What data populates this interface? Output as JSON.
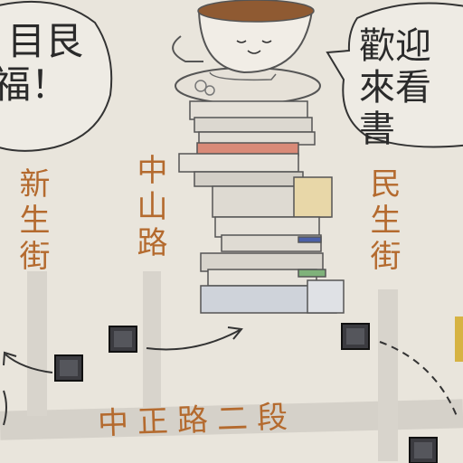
{
  "streets": {
    "xinsheng": "新生街",
    "zhongshan": "中山路",
    "minsheng": "民生街",
    "zhongzheng": "中正路二段"
  },
  "bubble_left": {
    "line1": "目艮",
    "line2": "福！"
  },
  "bubble_right": {
    "line1": "歡迎",
    "line2": "來看書"
  },
  "colors": {
    "paper": "#e9e5dc",
    "road": "#cfcbc3",
    "label": "#b46a2e",
    "outline": "#333333"
  },
  "icons": [
    "coffee-cup-icon",
    "book-stack-icon",
    "bus-stop-icon"
  ]
}
